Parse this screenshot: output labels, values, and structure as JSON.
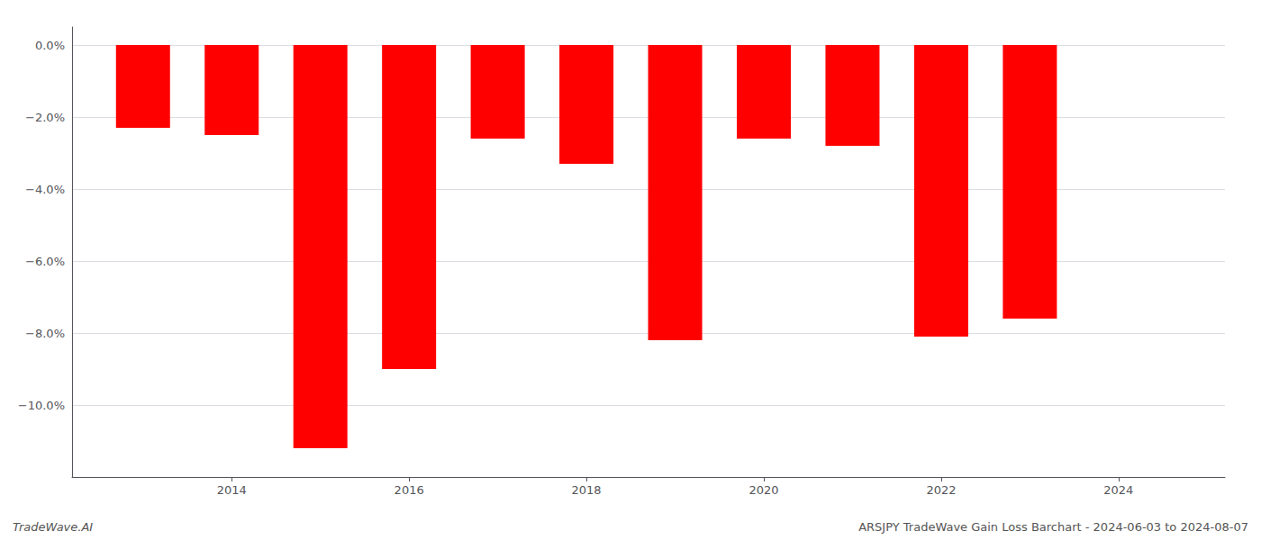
{
  "chart_data": {
    "type": "bar",
    "x": [
      2013.0,
      2014.0,
      2015.0,
      2016.0,
      2017.0,
      2018.0,
      2019.0,
      2020.0,
      2021.0,
      2022.0,
      2023.0
    ],
    "values": [
      -2.3,
      -2.5,
      -11.2,
      -9.0,
      -2.6,
      -3.3,
      -8.2,
      -2.6,
      -2.8,
      -8.1,
      -7.6
    ],
    "color": "#ff0000",
    "xlim": [
      2012.2,
      2025.2
    ],
    "xticks": [
      2014,
      2016,
      2018,
      2020,
      2022,
      2024
    ],
    "ylim": [
      -12.0,
      0.5
    ],
    "yticks": [
      {
        "value": 0.0,
        "label": "0.0%"
      },
      {
        "value": -2.0,
        "label": "−2.0%"
      },
      {
        "value": -4.0,
        "label": "−4.0%"
      },
      {
        "value": -6.0,
        "label": "−6.0%"
      },
      {
        "value": -8.0,
        "label": "−8.0%"
      },
      {
        "value": -10.0,
        "label": "−10.0%"
      }
    ],
    "grid": true,
    "annotations": [
      "TradeWave.AI",
      "ARSJPY TradeWave Gain Loss Barchart - 2024-06-03 to 2024-08-07"
    ]
  }
}
